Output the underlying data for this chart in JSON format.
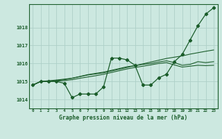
{
  "title": "Graphe pression niveau de la mer (hPa)",
  "x_labels": [
    "0",
    "1",
    "2",
    "3",
    "4",
    "5",
    "6",
    "7",
    "8",
    "9",
    "10",
    "11",
    "12",
    "13",
    "14",
    "15",
    "16",
    "17",
    "18",
    "19",
    "20",
    "21",
    "22",
    "23"
  ],
  "ylim": [
    1013.5,
    1019.3
  ],
  "yticks": [
    1014,
    1015,
    1016,
    1017,
    1018
  ],
  "background_color": "#cce8e0",
  "grid_color": "#aed0c8",
  "line_color": "#1a5c2a",
  "series": {
    "main": [
      1014.8,
      1015.0,
      1015.0,
      1015.0,
      1014.9,
      1014.1,
      1014.3,
      1014.3,
      1014.3,
      1014.7,
      1016.3,
      1016.3,
      1016.2,
      1015.9,
      1014.8,
      1014.8,
      1015.2,
      1015.4,
      1016.1,
      1016.5,
      1017.3,
      1018.1,
      1018.75,
      1019.1
    ],
    "line2": [
      1014.8,
      1015.0,
      1015.0,
      1015.05,
      1015.1,
      1015.18,
      1015.28,
      1015.38,
      1015.45,
      1015.52,
      1015.62,
      1015.72,
      1015.82,
      1015.88,
      1015.95,
      1016.0,
      1016.08,
      1016.15,
      1016.05,
      1015.9,
      1015.95,
      1016.1,
      1016.05,
      1016.1
    ],
    "line3": [
      1014.8,
      1015.0,
      1015.0,
      1015.02,
      1015.05,
      1015.1,
      1015.18,
      1015.25,
      1015.32,
      1015.4,
      1015.5,
      1015.6,
      1015.7,
      1015.78,
      1015.85,
      1015.92,
      1016.0,
      1016.05,
      1015.92,
      1015.8,
      1015.85,
      1015.9,
      1015.88,
      1015.9
    ],
    "linear": [
      1014.8,
      1015.0,
      1015.04,
      1015.08,
      1015.13,
      1015.18,
      1015.27,
      1015.36,
      1015.42,
      1015.48,
      1015.58,
      1015.68,
      1015.78,
      1015.88,
      1015.98,
      1016.08,
      1016.18,
      1016.28,
      1016.35,
      1016.42,
      1016.52,
      1016.6,
      1016.68,
      1016.75
    ]
  }
}
